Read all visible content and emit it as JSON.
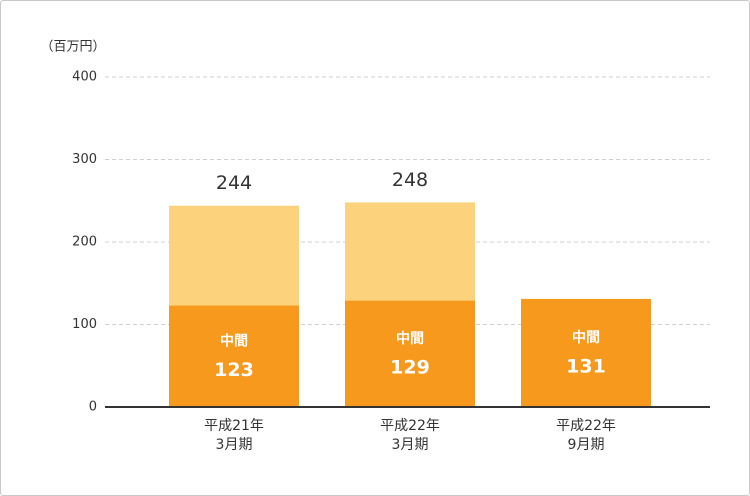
{
  "chart_data": {
    "type": "stacked_bar",
    "ylabel": "（百万円）",
    "categories": [
      "平成21年\n3月期",
      "平成22年\n3月期",
      "平成22年\n9月期"
    ],
    "series": [
      {
        "name": "中間",
        "color": "#f7991c",
        "values": [
          123,
          129,
          131
        ]
      },
      {
        "color": "#fdd27c",
        "values": [
          121,
          119,
          null
        ]
      }
    ],
    "totals": [
      244,
      248,
      null
    ],
    "ylim": [
      0,
      400
    ],
    "yticks": [
      0,
      100,
      200,
      300,
      400
    ],
    "grid": true
  }
}
